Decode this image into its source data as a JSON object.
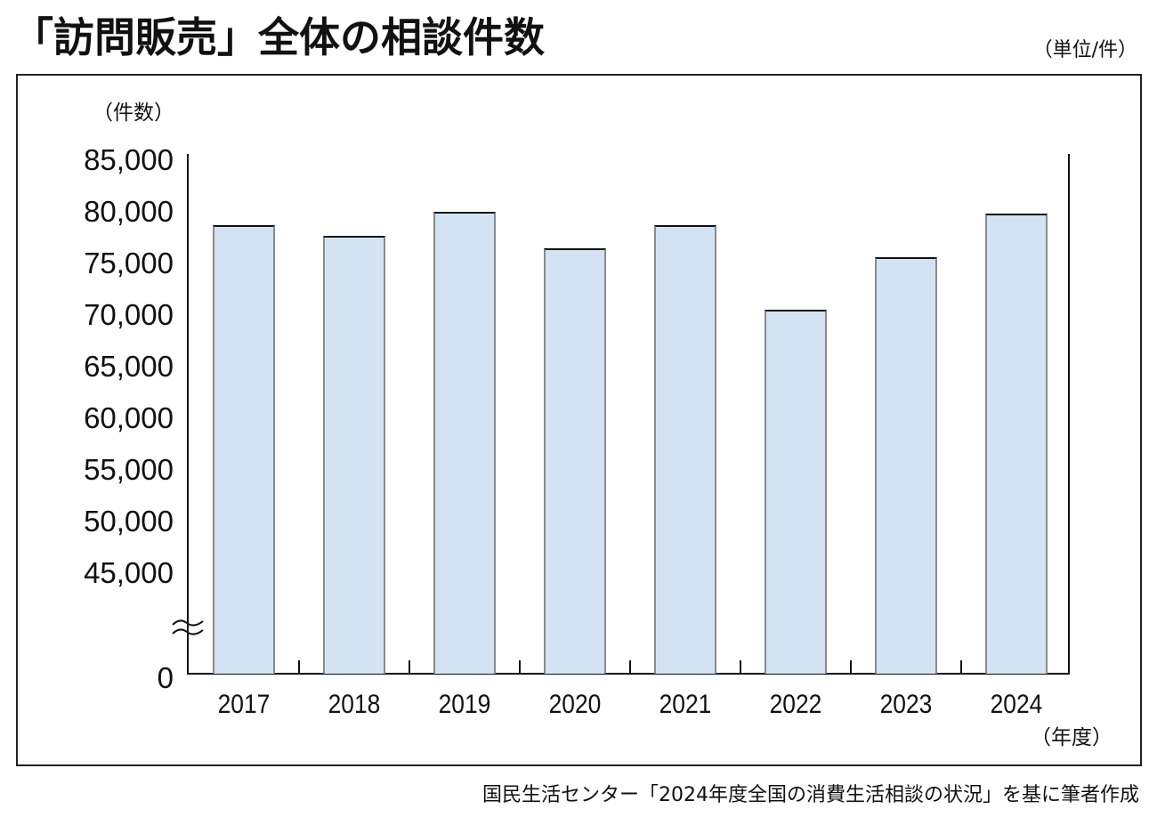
{
  "header": {
    "title": "「訪問販売」全体の相談件数",
    "unit": "（単位/件）"
  },
  "chart_data": {
    "type": "bar",
    "title": "「訪問販売」全体の相談件数",
    "xlabel": "（年度）",
    "ylabel": "（件数）",
    "categories": [
      "2017",
      "2018",
      "2019",
      "2020",
      "2021",
      "2022",
      "2023",
      "2024"
    ],
    "values": [
      78700,
      77700,
      80000,
      76500,
      78700,
      70500,
      75600,
      79800
    ],
    "yticks": [
      "85,000",
      "80,000",
      "75,000",
      "70,000",
      "65,000",
      "60,000",
      "55,000",
      "50,000",
      "45,000",
      "0"
    ],
    "ylim": [
      0,
      85000
    ],
    "axis_break": true,
    "grid": false,
    "legend": "none",
    "bar_color": "#d3e3f3",
    "bar_border_color": "#8a8a8e"
  },
  "footer": {
    "source": "国民生活センター「2024年度全国の消費生活相談の状況」を基に筆者作成"
  }
}
